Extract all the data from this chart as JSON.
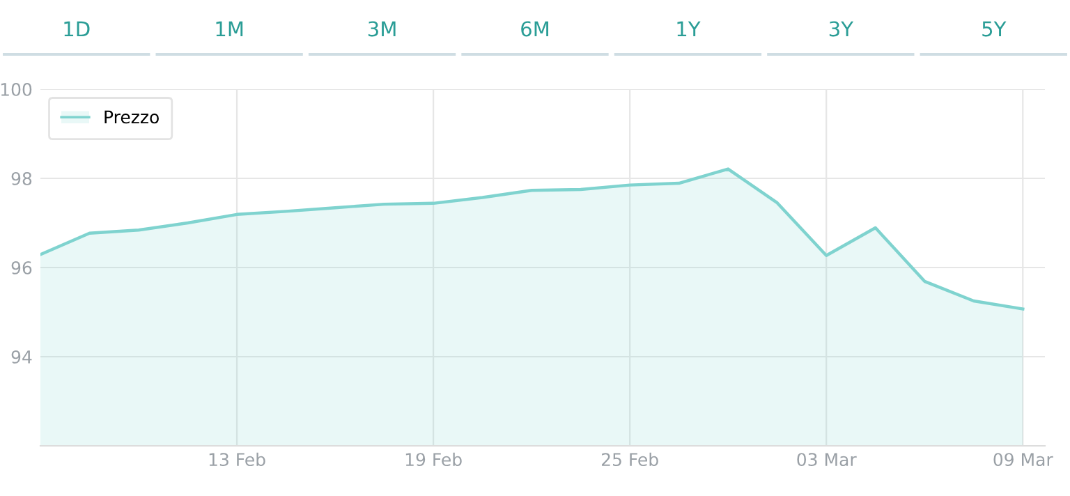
{
  "chart_data": {
    "type": "area",
    "annotations": [
      "1D",
      "1M",
      "3M",
      "6M",
      "1Y",
      "3Y",
      "5Y"
    ],
    "categories": [
      null,
      null,
      null,
      null,
      "13 Feb",
      null,
      null,
      null,
      "19 Feb",
      null,
      null,
      null,
      "25 Feb",
      null,
      null,
      null,
      "03 Mar",
      null,
      null,
      null,
      "09 Mar"
    ],
    "series": [
      {
        "name": "Prezzo",
        "color": "#7fd3cf",
        "values": [
          96.29,
          96.77,
          96.84,
          97.0,
          97.19,
          97.26,
          97.34,
          97.42,
          97.44,
          97.57,
          97.73,
          97.75,
          97.85,
          97.89,
          98.21,
          97.45,
          96.27,
          96.89,
          95.69,
          95.25,
          95.07
        ]
      }
    ],
    "ylim": [
      92,
      100
    ],
    "yticks": [
      94,
      96,
      98,
      100
    ],
    "grid": true,
    "legend": "top left",
    "marker": "none",
    "line_style": "solid"
  }
}
